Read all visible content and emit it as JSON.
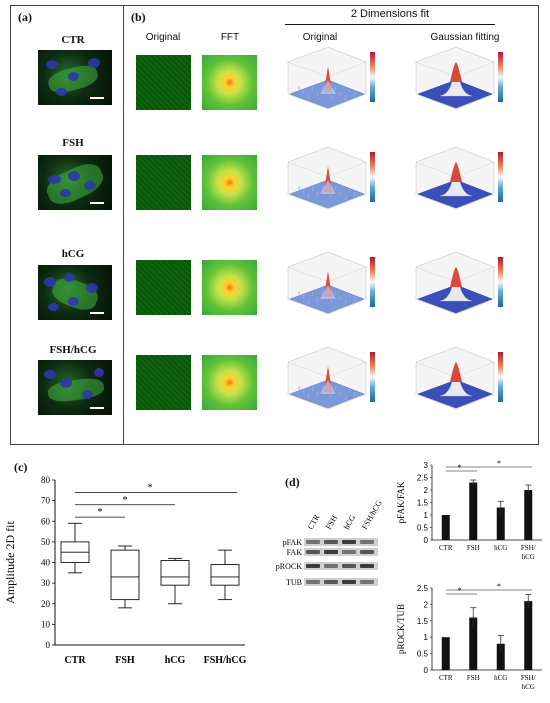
{
  "panels": {
    "a": "(a)",
    "b": "(b)",
    "c": "(c)",
    "d": "(d)"
  },
  "conditions": [
    "CTR",
    "FSH",
    "hCG",
    "FSH/hCG"
  ],
  "panel_b": {
    "header": "2 Dimensions fit",
    "col_original": "Original",
    "col_fft": "FFT",
    "col_3d_original": "Original",
    "col_gauss": "Gaussian fitting"
  },
  "chart_data": [
    {
      "type": "box",
      "ylabel": "Amplitude 2D fit",
      "ylim": [
        0,
        80
      ],
      "yticks": [
        0,
        10,
        20,
        30,
        40,
        50,
        60,
        70,
        80
      ],
      "categories": [
        "CTR",
        "FSH",
        "hCG",
        "FSH/hCG"
      ],
      "boxes": [
        {
          "min": 35,
          "q1": 40,
          "median": 45,
          "q3": 50,
          "max": 59
        },
        {
          "min": 18,
          "q1": 22,
          "median": 33,
          "q3": 46,
          "max": 48
        },
        {
          "min": 20,
          "q1": 29,
          "median": 33,
          "q3": 41,
          "max": 42
        },
        {
          "min": 22,
          "q1": 29,
          "median": 33,
          "q3": 39,
          "max": 46
        }
      ],
      "significance": [
        {
          "from": 0,
          "to": 1,
          "label": "*"
        },
        {
          "from": 0,
          "to": 2,
          "label": "*"
        },
        {
          "from": 0,
          "to": 3,
          "label": "*"
        }
      ]
    },
    {
      "type": "bar",
      "ylabel": "pFAK/FAK",
      "ylim": [
        0,
        3
      ],
      "yticks": [
        0,
        0.5,
        1,
        1.5,
        2,
        2.5,
        3
      ],
      "categories": [
        "CTR",
        "FSH",
        "hCG",
        "FSH/ hCG"
      ],
      "values": [
        1.0,
        2.3,
        1.3,
        2.0
      ],
      "errors": [
        0,
        0.1,
        0.25,
        0.2
      ],
      "significance": [
        {
          "from": 0,
          "to": 1,
          "label": "*"
        },
        {
          "from": 0,
          "to": 3,
          "label": "*"
        }
      ]
    },
    {
      "type": "bar",
      "ylabel": "pROCK/TUB",
      "ylim": [
        0,
        2.5
      ],
      "yticks": [
        0,
        0.5,
        1,
        1.5,
        2,
        2.5
      ],
      "categories": [
        "CTR",
        "FSH",
        "hCG",
        "FSH/ hCG"
      ],
      "values": [
        1.0,
        1.6,
        0.8,
        2.1
      ],
      "errors": [
        0,
        0.3,
        0.25,
        0.2
      ],
      "significance": [
        {
          "from": 0,
          "to": 1,
          "label": "*"
        },
        {
          "from": 0,
          "to": 3,
          "label": "*"
        }
      ]
    }
  ],
  "blot": {
    "lanes": [
      "CTR",
      "FSH",
      "hCG",
      "FSH/hCG"
    ],
    "rows": [
      "pFAK",
      "FAK",
      "pROCK",
      "TUB"
    ]
  }
}
